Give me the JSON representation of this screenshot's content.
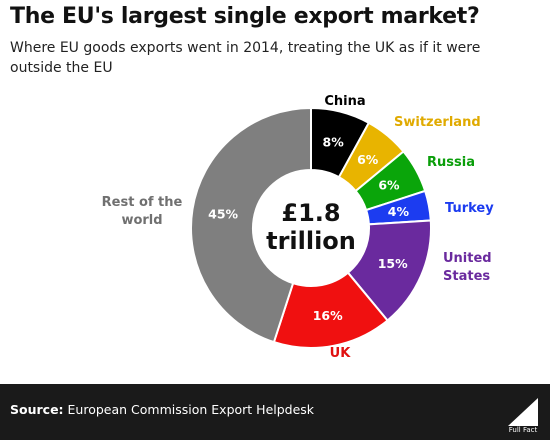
{
  "title": "The EU's largest single export market?",
  "subtitle": "Where EU goods exports went in 2014, treating the UK as if it were outside the EU",
  "chart_data": {
    "type": "pie",
    "subtype": "donut",
    "center_text": [
      "£1.8",
      "trillion"
    ],
    "labels": [
      "China",
      "Switzerland",
      "Russia",
      "Turkey",
      "United States",
      "UK",
      "Rest of the world"
    ],
    "values": [
      8,
      6,
      6,
      4,
      15,
      16,
      45
    ],
    "value_labels": [
      "8%",
      "6%",
      "6%",
      "4%",
      "15%",
      "16%",
      "45%"
    ],
    "colors": [
      "#000000",
      "#e8b400",
      "#0aa50a",
      "#1c3cf0",
      "#6a2a9e",
      "#f01010",
      "#7f7f7f"
    ],
    "label_colors": [
      "#000000",
      "#e0aa00",
      "#0a9e0a",
      "#1c3cf0",
      "#6a2a9e",
      "#e01010",
      "#707070"
    ],
    "legend": "labels beside slices"
  },
  "footer": {
    "source_prefix": "Source:",
    "source_text": " European Commission Export Helpdesk",
    "logo_text": "Full Fact",
    "background": "#1a1a1a"
  }
}
